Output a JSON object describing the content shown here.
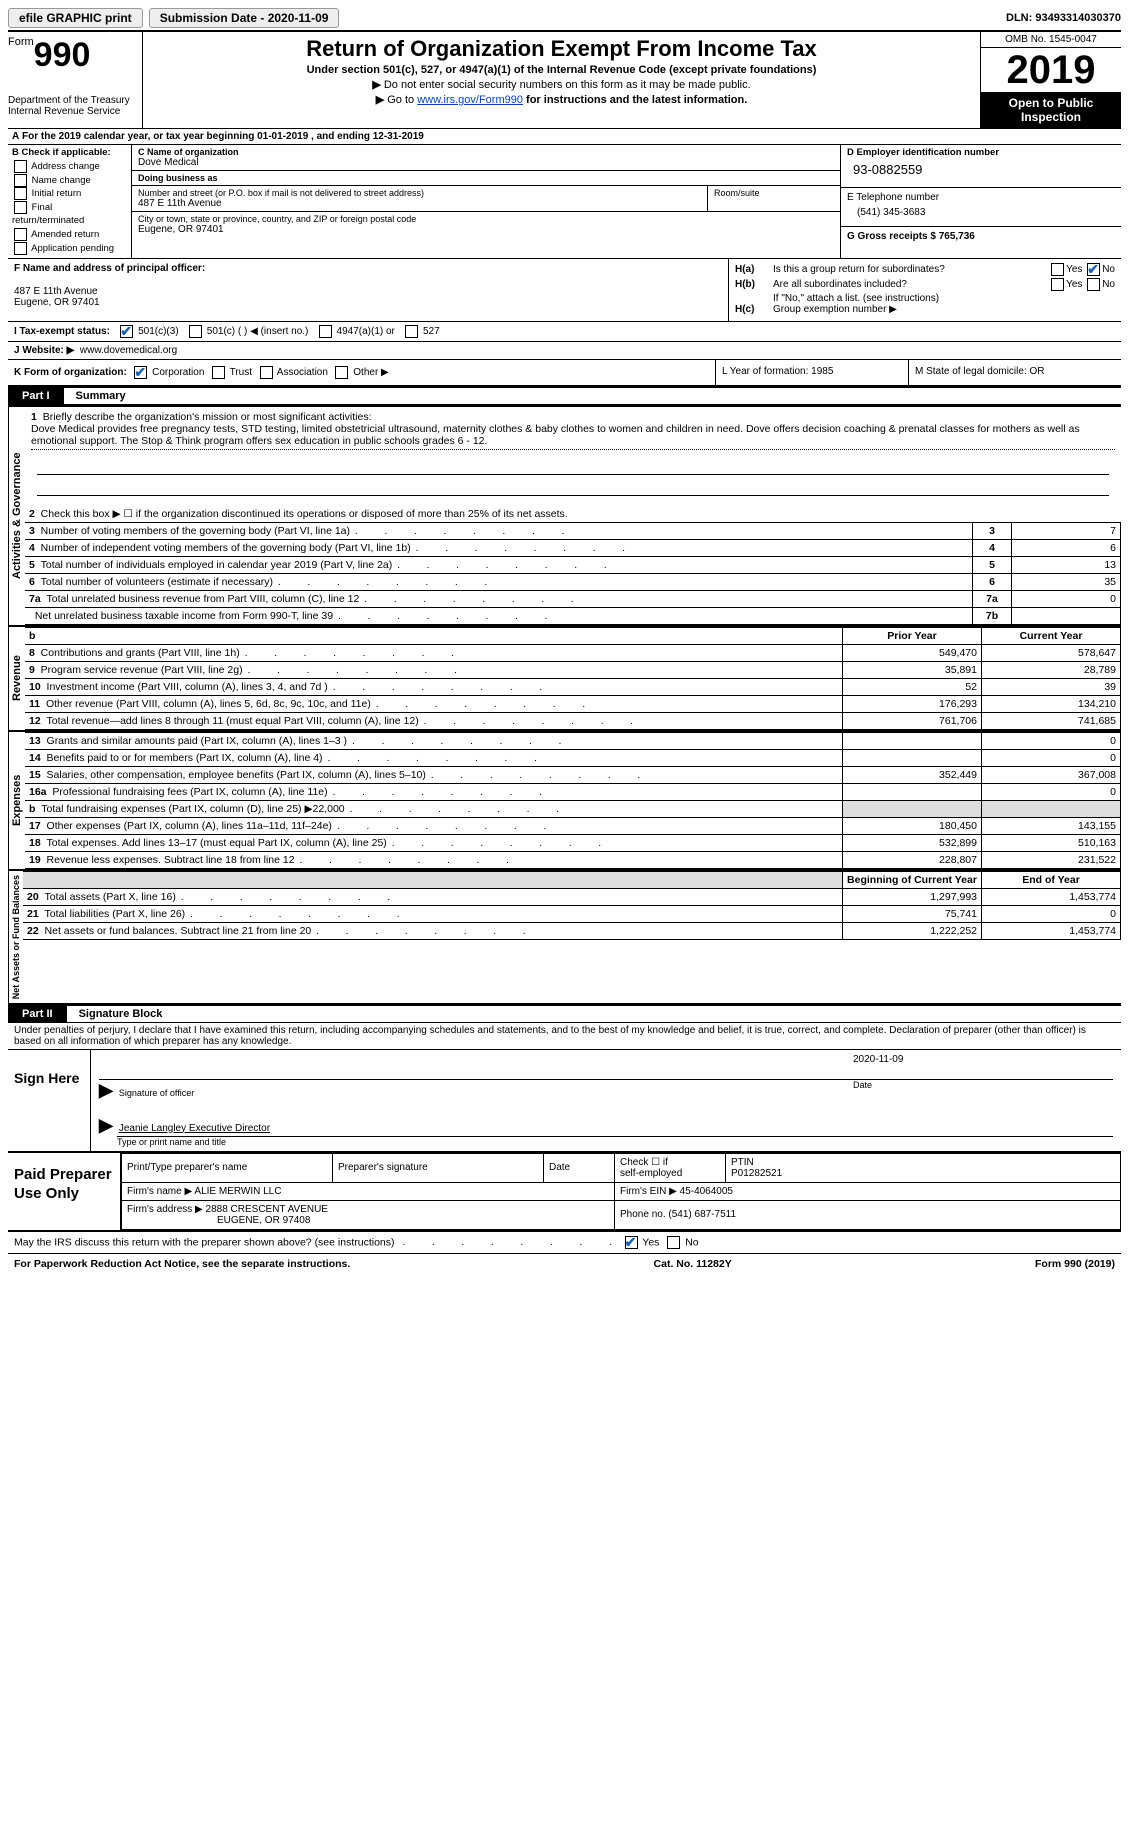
{
  "topbar": {
    "efile_label": "efile GRAPHIC print",
    "submission_label": "Submission Date - 2020-11-09",
    "dln_label": "DLN: 93493314030370"
  },
  "header": {
    "form_word": "Form",
    "form_num": "990",
    "dept1": "Department of the Treasury",
    "dept2": "Internal Revenue Service",
    "title": "Return of Organization Exempt From Income Tax",
    "sub1": "Under section 501(c), 527, or 4947(a)(1) of the Internal Revenue Code (except private foundations)",
    "sub2": "Do not enter social security numbers on this form as it may be made public.",
    "sub3_pre": "Go to ",
    "sub3_link": "www.irs.gov/Form990",
    "sub3_post": " for instructions and the latest information.",
    "omb": "OMB No. 1545-0047",
    "year": "2019",
    "inspection": "Open to Public Inspection"
  },
  "rowA": "For the 2019 calendar year, or tax year beginning 01-01-2019   , and ending 12-31-2019",
  "boxB": {
    "title": "B Check if applicable:",
    "opts": [
      "Address change",
      "Name change",
      "Initial return",
      "Final return/terminated",
      "Amended return",
      "Application pending"
    ]
  },
  "boxC": {
    "name_label": "C Name of organization",
    "name": "Dove Medical",
    "dba_label": "Doing business as",
    "dba": "",
    "street_label": "Number and street (or P.O. box if mail is not delivered to street address)",
    "street": "487 E 11th Avenue",
    "room_label": "Room/suite",
    "city_label": "City or town, state or province, country, and ZIP or foreign postal code",
    "city": "Eugene, OR  97401"
  },
  "boxD": {
    "label": "D Employer identification number",
    "ein": "93-0882559"
  },
  "boxE": {
    "label": "E Telephone number",
    "phone": "(541) 345-3683"
  },
  "boxG": {
    "label": "G Gross receipts $ 765,736"
  },
  "boxF": {
    "label": "F Name and address of principal officer:",
    "addr1": "487 E 11th Avenue",
    "addr2": "Eugene, OR  97401"
  },
  "boxH": {
    "a_label": "H(a)",
    "a_text": "Is this a group return for subordinates?",
    "b_label": "H(b)",
    "b_text": "Are all subordinates included?",
    "note": "If \"No,\" attach a list. (see instructions)",
    "c_label": "H(c)",
    "c_text": "Group exemption number ▶",
    "yes": "Yes",
    "no": "No"
  },
  "rowI": {
    "label": "I   Tax-exempt status:",
    "opts": [
      "501(c)(3)",
      "501(c) (  ) ◀ (insert no.)",
      "4947(a)(1) or",
      "527"
    ]
  },
  "rowJ": {
    "label": "J   Website: ▶",
    "url": "www.dovemedical.org"
  },
  "rowK": {
    "label": "K Form of organization:",
    "opts": [
      "Corporation",
      "Trust",
      "Association",
      "Other ▶"
    ]
  },
  "rowL": "L Year of formation: 1985",
  "rowM": "M State of legal domicile: OR",
  "part1": {
    "tab": "Part I",
    "title": "Summary"
  },
  "mission": {
    "q": "Briefly describe the organization's mission or most significant activities:",
    "text": "Dove Medical provides free pregnancy tests, STD testing, limited obstetricial ultrasound, maternity clothes & baby clothes to women and children in need. Dove offers decision coaching & prenatal classes for mothers as well as emotional support. The Stop & Think program offers sex education in public schools grades 6 - 12."
  },
  "gov_rows": [
    {
      "n": "2",
      "t": "Check this box ▶ ☐  if the organization discontinued its operations or disposed of more than 25% of its net assets.",
      "num": "",
      "val": ""
    },
    {
      "n": "3",
      "t": "Number of voting members of the governing body (Part VI, line 1a)",
      "num": "3",
      "val": "7"
    },
    {
      "n": "4",
      "t": "Number of independent voting members of the governing body (Part VI, line 1b)",
      "num": "4",
      "val": "6"
    },
    {
      "n": "5",
      "t": "Total number of individuals employed in calendar year 2019 (Part V, line 2a)",
      "num": "5",
      "val": "13"
    },
    {
      "n": "6",
      "t": "Total number of volunteers (estimate if necessary)",
      "num": "6",
      "val": "35"
    },
    {
      "n": "7a",
      "t": "Total unrelated business revenue from Part VIII, column (C), line 12",
      "num": "7a",
      "val": "0"
    },
    {
      "n": "",
      "t": "Net unrelated business taxable income from Form 990-T, line 39",
      "num": "7b",
      "val": ""
    }
  ],
  "revenue_header": {
    "b": "b",
    "py": "Prior Year",
    "cy": "Current Year"
  },
  "revenue_rows": [
    {
      "n": "8",
      "t": "Contributions and grants (Part VIII, line 1h)",
      "py": "549,470",
      "cy": "578,647"
    },
    {
      "n": "9",
      "t": "Program service revenue (Part VIII, line 2g)",
      "py": "35,891",
      "cy": "28,789"
    },
    {
      "n": "10",
      "t": "Investment income (Part VIII, column (A), lines 3, 4, and 7d )",
      "py": "52",
      "cy": "39"
    },
    {
      "n": "11",
      "t": "Other revenue (Part VIII, column (A), lines 5, 6d, 8c, 9c, 10c, and 11e)",
      "py": "176,293",
      "cy": "134,210"
    },
    {
      "n": "12",
      "t": "Total revenue—add lines 8 through 11 (must equal Part VIII, column (A), line 12)",
      "py": "761,706",
      "cy": "741,685"
    }
  ],
  "expense_rows": [
    {
      "n": "13",
      "t": "Grants and similar amounts paid (Part IX, column (A), lines 1–3 )",
      "py": "",
      "cy": "0"
    },
    {
      "n": "14",
      "t": "Benefits paid to or for members (Part IX, column (A), line 4)",
      "py": "",
      "cy": "0"
    },
    {
      "n": "15",
      "t": "Salaries, other compensation, employee benefits (Part IX, column (A), lines 5–10)",
      "py": "352,449",
      "cy": "367,008"
    },
    {
      "n": "16a",
      "t": "Professional fundraising fees (Part IX, column (A), line 11e)",
      "py": "",
      "cy": "0"
    },
    {
      "n": "b",
      "t": "Total fundraising expenses (Part IX, column (D), line 25) ▶22,000",
      "py": "SHADE",
      "cy": "SHADE"
    },
    {
      "n": "17",
      "t": "Other expenses (Part IX, column (A), lines 11a–11d, 11f–24e)",
      "py": "180,450",
      "cy": "143,155"
    },
    {
      "n": "18",
      "t": "Total expenses. Add lines 13–17 (must equal Part IX, column (A), line 25)",
      "py": "532,899",
      "cy": "510,163"
    },
    {
      "n": "19",
      "t": "Revenue less expenses. Subtract line 18 from line 12",
      "py": "228,807",
      "cy": "231,522"
    }
  ],
  "na_header": {
    "py": "Beginning of Current Year",
    "cy": "End of Year"
  },
  "na_rows": [
    {
      "n": "20",
      "t": "Total assets (Part X, line 16)",
      "py": "1,297,993",
      "cy": "1,453,774"
    },
    {
      "n": "21",
      "t": "Total liabilities (Part X, line 26)",
      "py": "75,741",
      "cy": "0"
    },
    {
      "n": "22",
      "t": "Net assets or fund balances. Subtract line 21 from line 20",
      "py": "1,222,252",
      "cy": "1,453,774"
    }
  ],
  "vlabels": {
    "gov": "Activities & Governance",
    "rev": "Revenue",
    "exp": "Expenses",
    "na": "Net Assets or Fund Balances"
  },
  "part2": {
    "tab": "Part II",
    "title": "Signature Block"
  },
  "perjury": "Under penalties of perjury, I declare that I have examined this return, including accompanying schedules and statements, and to the best of my knowledge and belief, it is true, correct, and complete. Declaration of preparer (other than officer) is based on all information of which preparer has any knowledge.",
  "sign": {
    "here": "Sign Here",
    "sig_label": "Signature of officer",
    "date_label": "Date",
    "date_val": "2020-11-09",
    "name": "Jeanie Langley  Executive Director",
    "name_label": "Type or print name and title"
  },
  "prep": {
    "left": "Paid Preparer Use Only",
    "h1": "Print/Type preparer's name",
    "h2": "Preparer's signature",
    "h3": "Date",
    "h4a": "Check ☐ if",
    "h4b": "self-employed",
    "h5": "PTIN",
    "ptin": "P01282521",
    "firm_label": "Firm's name   ▶",
    "firm": "ALIE MERWIN LLC",
    "ein_label": "Firm's EIN ▶",
    "ein": "45-4064005",
    "addr_label": "Firm's address ▶",
    "addr1": "2888 CRESCENT AVENUE",
    "addr2": "EUGENE, OR  97408",
    "phone_label": "Phone no.",
    "phone": "(541) 687-7511"
  },
  "discuss": {
    "q": "May the IRS discuss this return with the preparer shown above? (see instructions)",
    "yes": "Yes",
    "no": "No"
  },
  "footer": {
    "left": "For Paperwork Reduction Act Notice, see the separate instructions.",
    "mid": "Cat. No. 11282Y",
    "right": "Form 990 (2019)"
  }
}
